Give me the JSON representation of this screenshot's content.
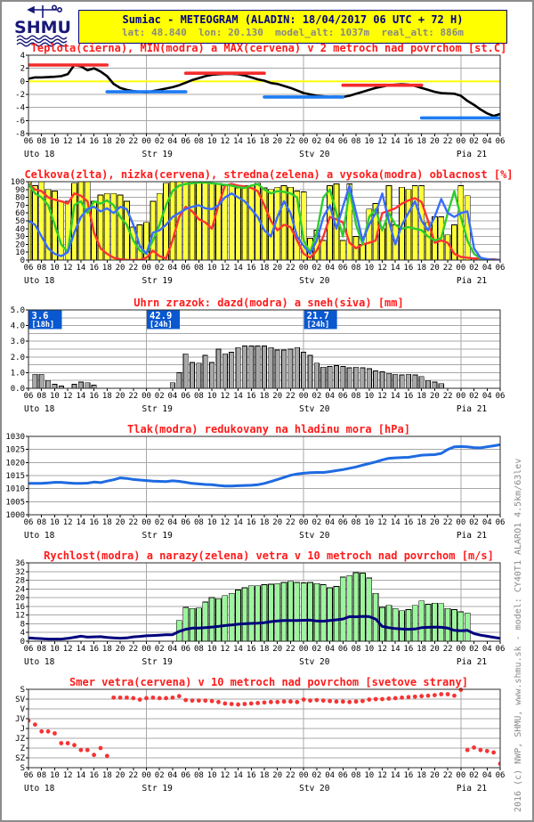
{
  "header": {
    "title": "Sumiac - METEOGRAM (ALADIN: 18/04/2017 06 UTC + 72 H)",
    "subtitle": "lat: 48.840  lon: 20.130  model_alt: 1037m  real_alt: 886m",
    "logo_text": "SHMU"
  },
  "side_note": "2016 (c) NWP, SHMU, www.shmu.sk - model: CY40T1 ALARO1 4.5km/63lev",
  "colors": {
    "title_red": "#ff1a1a",
    "grid_gray": "#a8a8a8",
    "plot_border": "#2a2a2a",
    "axis_text": "#000000",
    "zero_yellow": "#ffff00",
    "temp_line": "#000000",
    "max_red": "#f32b2b",
    "min_blue": "#1d7cf2",
    "cloud_bar": "#ffff3c",
    "cloud_low": "#ff3232",
    "cloud_mid": "#2ecc2e",
    "cloud_high": "#3a6cff",
    "precip_bar": "#a8a8a8",
    "annot_bg": "#0a58d0",
    "annot_text": "#ffffff",
    "pressure_line": "#1e6ae1",
    "gust_bar": "#9cf59c",
    "speed_line": "#00007d",
    "dir_dot": "#f53434",
    "header_bg": "#ffff00",
    "header_text": "#000080",
    "subtitle_gray": "#878787",
    "logo_navy": "#181878",
    "side_text": "#8a8a8a"
  },
  "x_axis": {
    "n_points": 73,
    "tick_every": 2,
    "hour_labels": [
      "06",
      "08",
      "10",
      "12",
      "14",
      "16",
      "18",
      "20",
      "22",
      "00",
      "02",
      "04",
      "06",
      "08",
      "10",
      "12",
      "14",
      "16",
      "18",
      "20",
      "22",
      "00",
      "02",
      "04",
      "06",
      "08",
      "10",
      "12",
      "14",
      "16",
      "18",
      "20",
      "22",
      "00",
      "02",
      "04",
      "06"
    ],
    "day_boundaries": [
      18,
      42,
      66
    ],
    "day_labels": [
      {
        "i": 0,
        "label": "Uto 18"
      },
      {
        "i": 18,
        "label": "Str 19"
      },
      {
        "i": 42,
        "label": "Stv 20"
      },
      {
        "i": 66,
        "label": "Pia 21"
      }
    ]
  },
  "chart_data": [
    {
      "kind": "temp",
      "type": "line",
      "title": "Teplota(cierna), MIN(modra) a MAX(cervena) v 2 metroch nad povrchom [st.C]",
      "ylim": [
        -8,
        4
      ],
      "grid_step": 2,
      "ytick_values": [
        4,
        2,
        0,
        -2,
        -4,
        -6,
        -8
      ],
      "ytick_labels": [
        "4",
        "2",
        "0",
        "-2",
        "-4",
        "-6",
        "-8"
      ],
      "zero_line": 0,
      "values": [
        0.4,
        0.6,
        0.6,
        0.65,
        0.7,
        0.8,
        1.1,
        2.5,
        2.3,
        1.7,
        2.0,
        1.5,
        0.8,
        -0.4,
        -1.0,
        -1.3,
        -1.5,
        -1.6,
        -1.7,
        -1.5,
        -1.3,
        -1.1,
        -0.9,
        -0.6,
        -0.2,
        0.2,
        0.5,
        0.8,
        1.0,
        1.1,
        1.15,
        1.15,
        1.1,
        0.9,
        0.6,
        0.3,
        0.1,
        -0.25,
        -0.4,
        -0.7,
        -1.0,
        -1.4,
        -1.8,
        -2.0,
        -2.2,
        -2.3,
        -2.4,
        -2.35,
        -2.4,
        -2.2,
        -1.9,
        -1.6,
        -1.3,
        -1.0,
        -0.8,
        -0.6,
        -0.5,
        -0.45,
        -0.5,
        -0.7,
        -1.0,
        -1.3,
        -1.6,
        -1.8,
        -1.85,
        -1.9,
        -2.2,
        -3.0,
        -3.6,
        -4.3,
        -4.9,
        -5.3,
        -5.0
      ],
      "max_segments": [
        {
          "from": 0,
          "to": 12,
          "value": 2.5
        },
        {
          "from": 24,
          "to": 36,
          "value": 1.25
        },
        {
          "from": 48,
          "to": 60,
          "value": -0.6
        }
      ],
      "min_segments": [
        {
          "from": 12,
          "to": 24,
          "value": -1.6
        },
        {
          "from": 36,
          "to": 48,
          "value": -2.4
        },
        {
          "from": 60,
          "to": 72,
          "value": -5.6
        }
      ]
    },
    {
      "kind": "clouds",
      "type": "bar",
      "title": "Celkova(zlta), nizka(cervena), stredna(zelena) a vysoka(modra) oblacnost [%]",
      "ylim": [
        0,
        100
      ],
      "grid_step": 10,
      "ytick_values": [
        100,
        90,
        80,
        70,
        60,
        50,
        40,
        30,
        20,
        10,
        0
      ],
      "ytick_labels": [
        "100",
        "90",
        "80",
        "70",
        "60",
        "50",
        "40",
        "30",
        "20",
        "10",
        "0"
      ],
      "total": [
        100,
        95,
        100,
        90,
        88,
        75,
        75,
        98,
        100,
        100,
        75,
        83,
        85,
        85,
        83,
        75,
        42,
        45,
        48,
        75,
        85,
        98,
        100,
        100,
        100,
        100,
        100,
        98,
        98,
        98,
        95,
        95,
        92,
        95,
        95,
        98,
        92,
        90,
        93,
        95,
        93,
        88,
        87,
        28,
        38,
        25,
        95,
        97,
        25,
        97,
        30,
        20,
        65,
        72,
        40,
        95,
        45,
        93,
        90,
        95,
        95,
        48,
        55,
        55,
        32,
        45,
        95,
        82,
        3,
        0,
        0,
        0,
        0
      ],
      "low": [
        97,
        90,
        88,
        80,
        77,
        75,
        72,
        85,
        82,
        75,
        35,
        15,
        8,
        3,
        1,
        0,
        0,
        0,
        3,
        12,
        5,
        2,
        25,
        55,
        68,
        62,
        52,
        48,
        40,
        70,
        95,
        97,
        95,
        94,
        92,
        88,
        70,
        50,
        38,
        45,
        42,
        25,
        8,
        3,
        12,
        30,
        55,
        52,
        48,
        22,
        15,
        20,
        22,
        25,
        60,
        63,
        66,
        72,
        76,
        79,
        74,
        50,
        22,
        25,
        22,
        8,
        4,
        3,
        2,
        2,
        1,
        1,
        0
      ],
      "mid": [
        97,
        85,
        80,
        70,
        45,
        20,
        10,
        70,
        75,
        60,
        75,
        72,
        76,
        70,
        55,
        45,
        25,
        12,
        8,
        25,
        45,
        70,
        88,
        95,
        97,
        98,
        99,
        99,
        98,
        97,
        96,
        95,
        93,
        92,
        95,
        97,
        90,
        85,
        88,
        87,
        85,
        80,
        25,
        10,
        35,
        80,
        90,
        60,
        30,
        90,
        45,
        20,
        55,
        65,
        38,
        60,
        45,
        40,
        42,
        40,
        38,
        30,
        25,
        28,
        60,
        88,
        55,
        25,
        8,
        2,
        1,
        0,
        0
      ],
      "high": [
        50,
        45,
        30,
        15,
        8,
        5,
        10,
        35,
        55,
        65,
        68,
        62,
        66,
        60,
        68,
        65,
        45,
        18,
        8,
        35,
        38,
        45,
        55,
        60,
        65,
        68,
        70,
        66,
        65,
        70,
        80,
        85,
        80,
        75,
        65,
        55,
        38,
        30,
        55,
        75,
        60,
        30,
        18,
        8,
        25,
        55,
        70,
        40,
        68,
        95,
        60,
        25,
        45,
        60,
        85,
        50,
        20,
        45,
        60,
        75,
        50,
        38,
        55,
        78,
        60,
        55,
        60,
        62,
        15,
        3,
        1,
        0,
        0
      ]
    },
    {
      "kind": "precip",
      "type": "bar",
      "title": "Uhrn zrazok: dazd(modra) a sneh(siva) [mm]",
      "ylim": [
        0,
        5
      ],
      "grid_step": 0.5,
      "ytick_values": [
        5,
        4,
        3,
        2,
        1,
        0
      ],
      "ytick_labels": [
        "5.0",
        "4.0",
        "3.0",
        "2.0",
        "1.0",
        "0.0"
      ],
      "snow": [
        0,
        0.9,
        0.9,
        0.5,
        0.25,
        0.15,
        0,
        0.25,
        0.4,
        0.35,
        0.2,
        0,
        0,
        0,
        0,
        0,
        0,
        0,
        0,
        0,
        0,
        0,
        0.35,
        1.0,
        2.2,
        1.65,
        1.6,
        2.1,
        1.65,
        2.5,
        2.2,
        2.3,
        2.6,
        2.7,
        2.7,
        2.7,
        2.7,
        2.6,
        2.45,
        2.45,
        2.5,
        2.6,
        2.3,
        2.1,
        1.6,
        1.35,
        1.4,
        1.45,
        1.4,
        1.3,
        1.35,
        1.3,
        1.25,
        1.1,
        1.05,
        0.95,
        0.9,
        0.85,
        0.9,
        0.85,
        0.75,
        0.5,
        0.4,
        0.3,
        0,
        0,
        0,
        0,
        0,
        0,
        0,
        0,
        0
      ],
      "annotations": [
        {
          "value": "3.6",
          "period": "[18h]",
          "hour": 0
        },
        {
          "value": "42.9",
          "period": "[24h]",
          "hour": 18
        },
        {
          "value": "21.7",
          "period": "[24h]",
          "hour": 42
        }
      ]
    },
    {
      "kind": "line",
      "type": "line",
      "title": "Tlak(modra) redukovany na hladinu mora [hPa]",
      "ylim": [
        1000,
        1030
      ],
      "grid_step": 5,
      "ytick_values": [
        1030,
        1025,
        1020,
        1015,
        1010,
        1005,
        1000
      ],
      "ytick_labels": [
        "1030",
        "1025",
        "1020",
        "1015",
        "1010",
        "1005",
        "1000"
      ],
      "values": [
        1012.0,
        1012.0,
        1012.0,
        1012.2,
        1012.4,
        1012.4,
        1012.2,
        1012.0,
        1012.0,
        1012.1,
        1012.5,
        1012.3,
        1012.9,
        1013.4,
        1014.1,
        1013.9,
        1013.5,
        1013.3,
        1013.1,
        1012.9,
        1012.8,
        1012.7,
        1013.0,
        1012.8,
        1012.4,
        1012.0,
        1011.8,
        1011.6,
        1011.5,
        1011.2,
        1011.0,
        1011.0,
        1011.1,
        1011.2,
        1011.3,
        1011.5,
        1012.0,
        1012.7,
        1013.5,
        1014.3,
        1015.1,
        1015.6,
        1015.9,
        1016.1,
        1016.2,
        1016.2,
        1016.5,
        1016.9,
        1017.3,
        1017.8,
        1018.3,
        1019.0,
        1019.6,
        1020.2,
        1021.0,
        1021.6,
        1021.8,
        1021.9,
        1022.0,
        1022.4,
        1022.8,
        1022.9,
        1023.0,
        1023.5,
        1025.0,
        1026.0,
        1026.1,
        1026.0,
        1025.7,
        1025.6,
        1026.0,
        1026.4,
        1026.8
      ]
    },
    {
      "kind": "wind",
      "type": "bar",
      "title": "Rychlost(modra) a narazy(zelena) vetra v 10 metroch nad povrchom [m/s]",
      "ylim": [
        0,
        36
      ],
      "grid_step": 4,
      "ytick_values": [
        36,
        32,
        28,
        24,
        20,
        16,
        12,
        8,
        4,
        0
      ],
      "ytick_labels": [
        "36",
        "32",
        "28",
        "24",
        "20",
        "16",
        "12",
        "8",
        "4",
        "0"
      ],
      "gusts": [
        0,
        0,
        0,
        0,
        0,
        0,
        0,
        0,
        0,
        0,
        0,
        0,
        0,
        0,
        0,
        0,
        0,
        0,
        0,
        0,
        0,
        0,
        0,
        9.5,
        15.5,
        15,
        15.2,
        18,
        20,
        19.5,
        21,
        22,
        23.5,
        24.5,
        25.5,
        25.5,
        26,
        26.2,
        26.5,
        27,
        27.5,
        27,
        26.8,
        27,
        26.5,
        26,
        24.5,
        25.2,
        29.5,
        30.2,
        31.5,
        31.3,
        29,
        22,
        15.5,
        16.5,
        15,
        14,
        14.5,
        16.5,
        18.5,
        17,
        17.5,
        17.3,
        15,
        14.5,
        13.5,
        13,
        0,
        0,
        0,
        0,
        0
      ],
      "speed": [
        1.5,
        1.3,
        1.2,
        1.0,
        1.0,
        1.0,
        1.3,
        1.8,
        2.3,
        1.9,
        2.0,
        2.1,
        1.7,
        1.5,
        1.4,
        1.5,
        2.0,
        2.2,
        2.5,
        2.6,
        2.8,
        3.0,
        3.0,
        4.5,
        5.5,
        6.0,
        6.0,
        6.2,
        6.5,
        6.8,
        7.2,
        7.5,
        7.8,
        8.0,
        8.2,
        8.3,
        8.5,
        9.0,
        9.3,
        9.5,
        9.5,
        9.5,
        9.6,
        9.7,
        9.3,
        9.2,
        9.5,
        9.8,
        10.2,
        11.3,
        11.2,
        11.4,
        11.3,
        10.2,
        6.8,
        6.2,
        5.8,
        5.6,
        5.5,
        5.6,
        6.2,
        6.4,
        6.5,
        6.4,
        6.0,
        5.0,
        4.8,
        5.0,
        3.5,
        2.8,
        2.3,
        1.8,
        1.3
      ]
    },
    {
      "kind": "dots",
      "type": "scatter",
      "title": "Smer vetra(cervena) v 10 metroch nad povrchom [svetove strany]",
      "ylim": [
        0,
        8
      ],
      "grid_step": 1,
      "invert_y": true,
      "ytick_values": [
        0,
        1,
        2,
        3,
        4,
        5,
        6,
        7,
        8
      ],
      "ytick_labels": [
        "S",
        "SV",
        "V",
        "JV",
        "J",
        "JZ",
        "Z",
        "SZ",
        "S"
      ],
      "values": [
        3.2,
        3.6,
        4.3,
        4.3,
        4.5,
        5.5,
        5.5,
        5.7,
        6.2,
        6.2,
        6.7,
        6.0,
        6.8,
        0.85,
        0.85,
        0.85,
        0.9,
        1.05,
        0.9,
        0.85,
        0.9,
        0.9,
        0.85,
        0.7,
        1.1,
        1.15,
        1.15,
        1.15,
        1.2,
        1.3,
        1.45,
        1.5,
        1.55,
        1.5,
        1.45,
        1.4,
        1.35,
        1.3,
        1.3,
        1.25,
        1.25,
        1.3,
        1.05,
        1.15,
        1.1,
        1.15,
        1.2,
        1.25,
        1.25,
        1.3,
        1.25,
        1.2,
        1.05,
        1.0,
        1.0,
        0.95,
        0.9,
        0.85,
        0.8,
        0.75,
        0.7,
        0.65,
        0.6,
        0.5,
        0.5,
        0.65,
        0.05,
        6.2,
        5.95,
        6.2,
        6.3,
        6.45,
        7.6
      ]
    }
  ]
}
